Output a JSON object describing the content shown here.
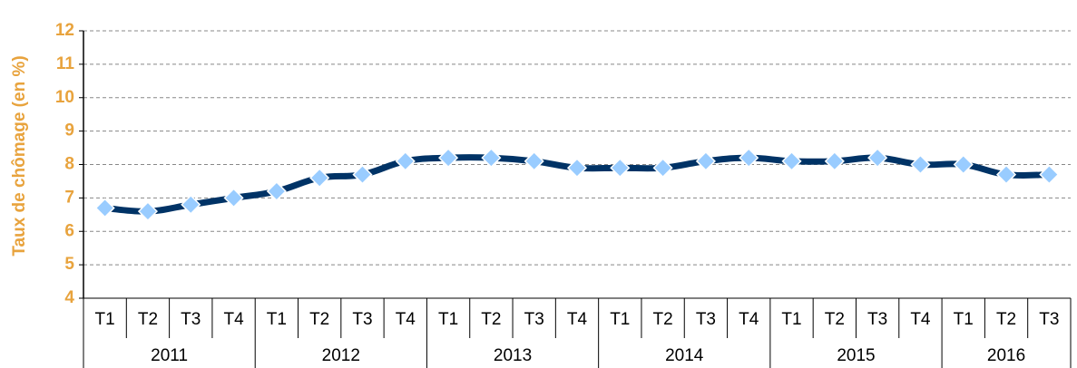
{
  "chart_data": {
    "type": "line",
    "y_label": "Taux de chômage (en %)",
    "groups": [
      {
        "label": "2011",
        "categories": [
          "T1",
          "T2",
          "T3",
          "T4"
        ]
      },
      {
        "label": "2012",
        "categories": [
          "T1",
          "T2",
          "T3",
          "T4"
        ]
      },
      {
        "label": "2013",
        "categories": [
          "T1",
          "T2",
          "T3",
          "T4"
        ]
      },
      {
        "label": "2014",
        "categories": [
          "T1",
          "T2",
          "T3",
          "T4"
        ]
      },
      {
        "label": "2015",
        "categories": [
          "T1",
          "T2",
          "T3",
          "T4"
        ]
      },
      {
        "label": "2016",
        "categories": [
          "T1",
          "T2",
          "T3"
        ]
      }
    ],
    "values": [
      6.7,
      6.6,
      6.8,
      7.0,
      7.2,
      7.6,
      7.7,
      8.1,
      8.2,
      8.2,
      8.1,
      7.9,
      7.9,
      7.9,
      8.1,
      8.2,
      8.1,
      8.1,
      8.2,
      8.0,
      8.0,
      7.7,
      7.7
    ],
    "color": "#003366",
    "marker_color": "#99ccff",
    "ylim": [
      4,
      12
    ],
    "yticks": [
      4,
      5,
      6,
      7,
      8,
      9,
      10,
      11,
      12
    ],
    "grid": true
  }
}
